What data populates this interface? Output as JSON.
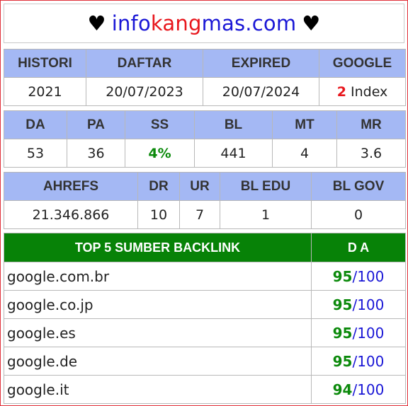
{
  "site": {
    "heart_left": "♥",
    "part1": "info",
    "part2": "kang",
    "part3": "mas.com",
    "heart_right": "♥"
  },
  "table1": {
    "headers": [
      "HISTORI",
      "DAFTAR",
      "EXPIRED",
      "GOOGLE"
    ],
    "histori": "2021",
    "daftar": "20/07/2023",
    "expired": "20/07/2024",
    "google_count": "2",
    "google_suffix": "Index"
  },
  "table2": {
    "headers": [
      "DA",
      "PA",
      "SS",
      "BL",
      "MT",
      "MR"
    ],
    "values": [
      "53",
      "36",
      "4%",
      "441",
      "4",
      "3.6"
    ]
  },
  "table3": {
    "headers": [
      "AHREFS",
      "DR",
      "UR",
      "BL EDU",
      "BL GOV"
    ],
    "values": [
      "21.346.866",
      "10",
      "7",
      "1",
      "0"
    ]
  },
  "backlinks": {
    "header_source": "TOP 5 SUMBER BACKLINK",
    "header_da": "D A",
    "slash": "/",
    "max": "100",
    "rows": [
      {
        "domain": "google.com.br",
        "score": "95"
      },
      {
        "domain": "google.co.jp",
        "score": "95"
      },
      {
        "domain": "google.es",
        "score": "95"
      },
      {
        "domain": "google.de",
        "score": "95"
      },
      {
        "domain": "google.it",
        "score": "94"
      }
    ]
  },
  "colors": {
    "header_blue": "#a4b8f4",
    "header_green": "#078207",
    "accent_red": "#e8161c",
    "text_blue": "#1a17d6",
    "score_green": "#0c8a0c"
  }
}
